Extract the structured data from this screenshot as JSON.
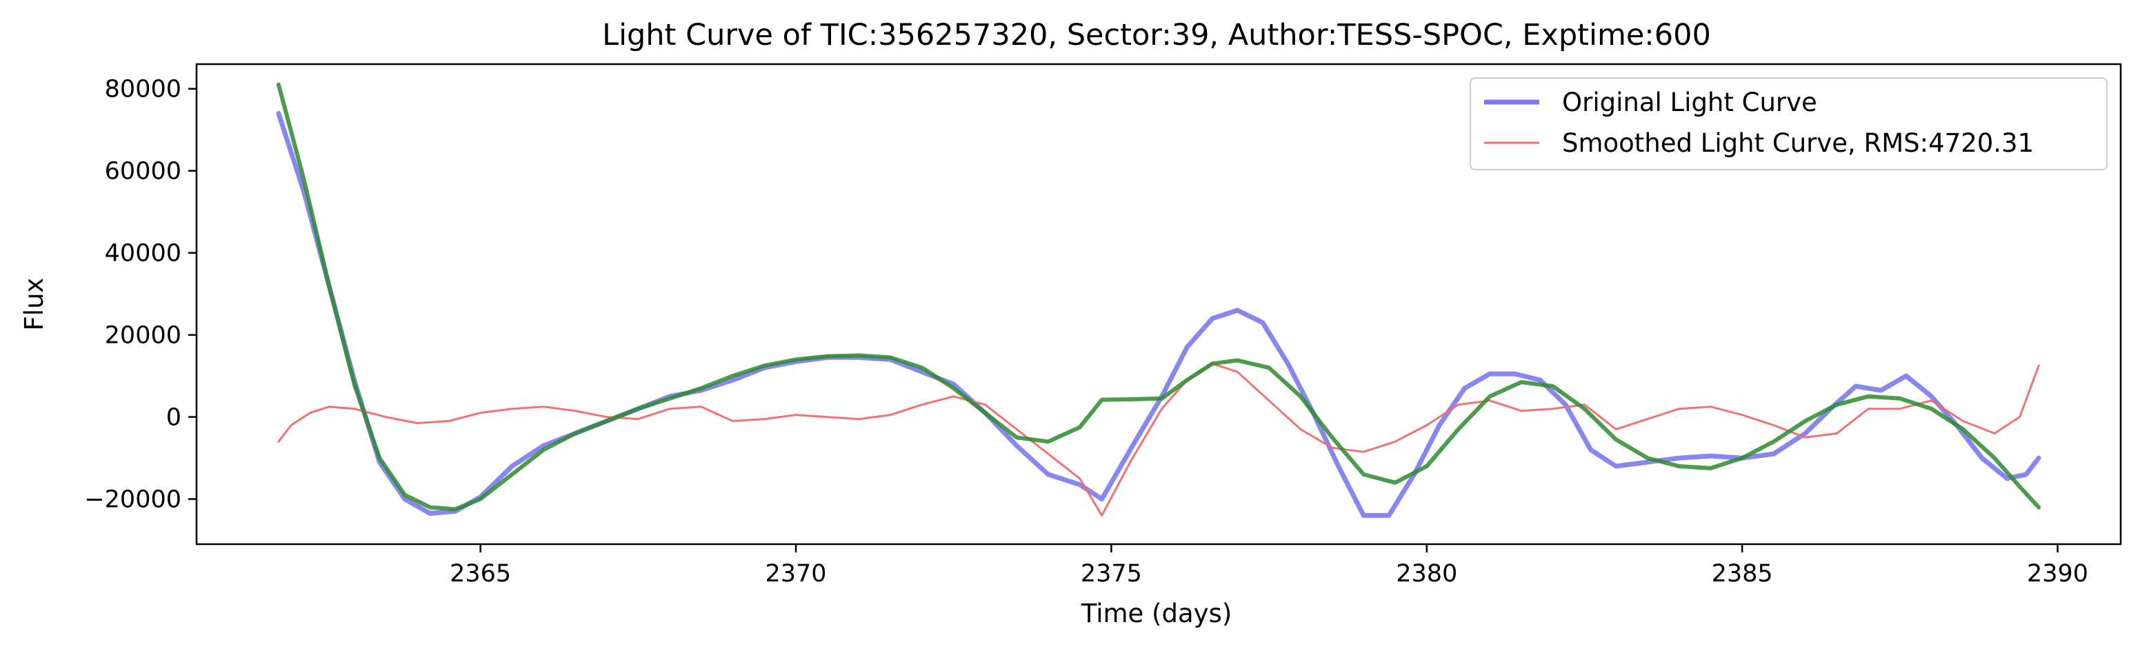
{
  "chart_data": {
    "type": "line",
    "title": "Light Curve of TIC:356257320, Sector:39, Author:TESS-SPOC, Exptime:600",
    "xlabel": "Time (days)",
    "ylabel": "Flux",
    "xlim": [
      2360.5,
      2391.0
    ],
    "ylim": [
      -31000,
      86000
    ],
    "xticks": [
      2365,
      2370,
      2375,
      2380,
      2385,
      2390
    ],
    "yticks": [
      -20000,
      0,
      20000,
      40000,
      60000,
      80000
    ],
    "grid": false,
    "legend_position": "upper right",
    "series": [
      {
        "name": "Original Light Curve",
        "color": "#7a7af0",
        "x": [
          2361.8,
          2362.2,
          2362.6,
          2363.0,
          2363.4,
          2363.8,
          2364.2,
          2364.6,
          2365.0,
          2365.5,
          2366.0,
          2366.5,
          2367.0,
          2367.5,
          2368.0,
          2368.5,
          2369.0,
          2369.5,
          2370.0,
          2370.5,
          2371.0,
          2371.5,
          2372.0,
          2372.5,
          2373.0,
          2373.5,
          2374.0,
          2374.5,
          2374.85,
          2375.3,
          2375.8,
          2376.2,
          2376.6,
          2377.0,
          2377.4,
          2377.8,
          2378.2,
          2378.6,
          2379.0,
          2379.4,
          2379.8,
          2380.2,
          2380.6,
          2381.0,
          2381.4,
          2381.8,
          2382.2,
          2382.6,
          2383.0,
          2383.5,
          2384.0,
          2384.5,
          2385.0,
          2385.5,
          2386.0,
          2386.4,
          2386.8,
          2387.2,
          2387.6,
          2388.0,
          2388.4,
          2388.8,
          2389.2,
          2389.5,
          2389.7
        ],
        "y": [
          74000,
          55000,
          32000,
          9000,
          -11000,
          -20000,
          -23500,
          -23000,
          -19500,
          -12000,
          -7000,
          -4000,
          -1000,
          2000,
          5000,
          6500,
          9000,
          12000,
          13500,
          14500,
          14500,
          14000,
          11000,
          8000,
          1000,
          -7000,
          -14000,
          -16500,
          -20000,
          -8000,
          5000,
          17000,
          24000,
          26000,
          23000,
          13000,
          1000,
          -12000,
          -24000,
          -24000,
          -14000,
          -2000,
          7000,
          10500,
          10500,
          9000,
          3000,
          -8000,
          -12000,
          -11000,
          -10000,
          -9500,
          -10000,
          -9000,
          -4000,
          2000,
          7500,
          6500,
          10000,
          5000,
          -2000,
          -10000,
          -15000,
          -14000,
          -10000
        ]
      },
      {
        "name": "Smoothed Light Curve, RMS:4720.31",
        "color": "#f26b6b",
        "x": [
          2361.8,
          2362.0,
          2362.3,
          2362.6,
          2363.0,
          2363.5,
          2364.0,
          2364.5,
          2365.0,
          2365.5,
          2366.0,
          2366.5,
          2367.0,
          2367.5,
          2368.0,
          2368.5,
          2369.0,
          2369.5,
          2370.0,
          2370.5,
          2371.0,
          2371.5,
          2372.0,
          2372.5,
          2373.0,
          2373.5,
          2374.0,
          2374.5,
          2374.85,
          2375.3,
          2375.8,
          2376.2,
          2376.6,
          2377.0,
          2377.5,
          2378.0,
          2378.5,
          2379.0,
          2379.5,
          2380.0,
          2380.5,
          2381.0,
          2381.5,
          2382.0,
          2382.5,
          2383.0,
          2383.5,
          2384.0,
          2384.5,
          2385.0,
          2385.5,
          2386.0,
          2386.5,
          2387.0,
          2387.5,
          2388.0,
          2388.5,
          2389.0,
          2389.4,
          2389.7
        ],
        "y": [
          -6000,
          -2000,
          1000,
          2500,
          2000,
          0,
          -1500,
          -1000,
          1000,
          2000,
          2500,
          1500,
          0,
          -500,
          2000,
          2500,
          -1000,
          -500,
          500,
          0,
          -500,
          500,
          3000,
          5000,
          3000,
          -3000,
          -9000,
          -15000,
          -24000,
          -11000,
          2000,
          9000,
          13000,
          11000,
          4000,
          -3000,
          -7500,
          -8500,
          -6000,
          -2000,
          3000,
          4000,
          1500,
          2000,
          3000,
          -3000,
          -500,
          2000,
          2500,
          500,
          -2000,
          -5000,
          -4000,
          2000,
          2000,
          4000,
          -1000,
          -4000,
          0,
          12500
        ]
      },
      {
        "name": "",
        "color": "#2e8b2e",
        "x": [
          2361.8,
          2362.2,
          2362.6,
          2363.0,
          2363.4,
          2363.8,
          2364.2,
          2364.6,
          2365.0,
          2365.5,
          2366.0,
          2366.5,
          2367.0,
          2367.5,
          2368.0,
          2368.5,
          2369.0,
          2369.5,
          2370.0,
          2370.5,
          2371.0,
          2371.5,
          2372.0,
          2372.5,
          2373.0,
          2373.5,
          2374.0,
          2374.5,
          2374.85,
          2375.3,
          2375.8,
          2376.2,
          2376.6,
          2377.0,
          2377.5,
          2378.0,
          2378.5,
          2379.0,
          2379.5,
          2380.0,
          2380.5,
          2381.0,
          2381.5,
          2382.0,
          2382.5,
          2383.0,
          2383.5,
          2384.0,
          2384.5,
          2385.0,
          2385.5,
          2386.0,
          2386.5,
          2387.0,
          2387.5,
          2388.0,
          2388.5,
          2389.0,
          2389.4,
          2389.7
        ],
        "y": [
          81000,
          58000,
          32000,
          8000,
          -10000,
          -19000,
          -22000,
          -22500,
          -20000,
          -14000,
          -8000,
          -4000,
          -1000,
          2000,
          4500,
          7000,
          10000,
          12500,
          14000,
          14800,
          15000,
          14500,
          12000,
          7000,
          1000,
          -5000,
          -6000,
          -2500,
          4200,
          4300,
          4500,
          9000,
          13000,
          13800,
          12000,
          5000,
          -5000,
          -14000,
          -16000,
          -12000,
          -3000,
          5000,
          8500,
          7500,
          2000,
          -5500,
          -10000,
          -12000,
          -12500,
          -10000,
          -6000,
          -1000,
          3000,
          5000,
          4500,
          2000,
          -3000,
          -10000,
          -17000,
          -22000
        ]
      }
    ]
  }
}
